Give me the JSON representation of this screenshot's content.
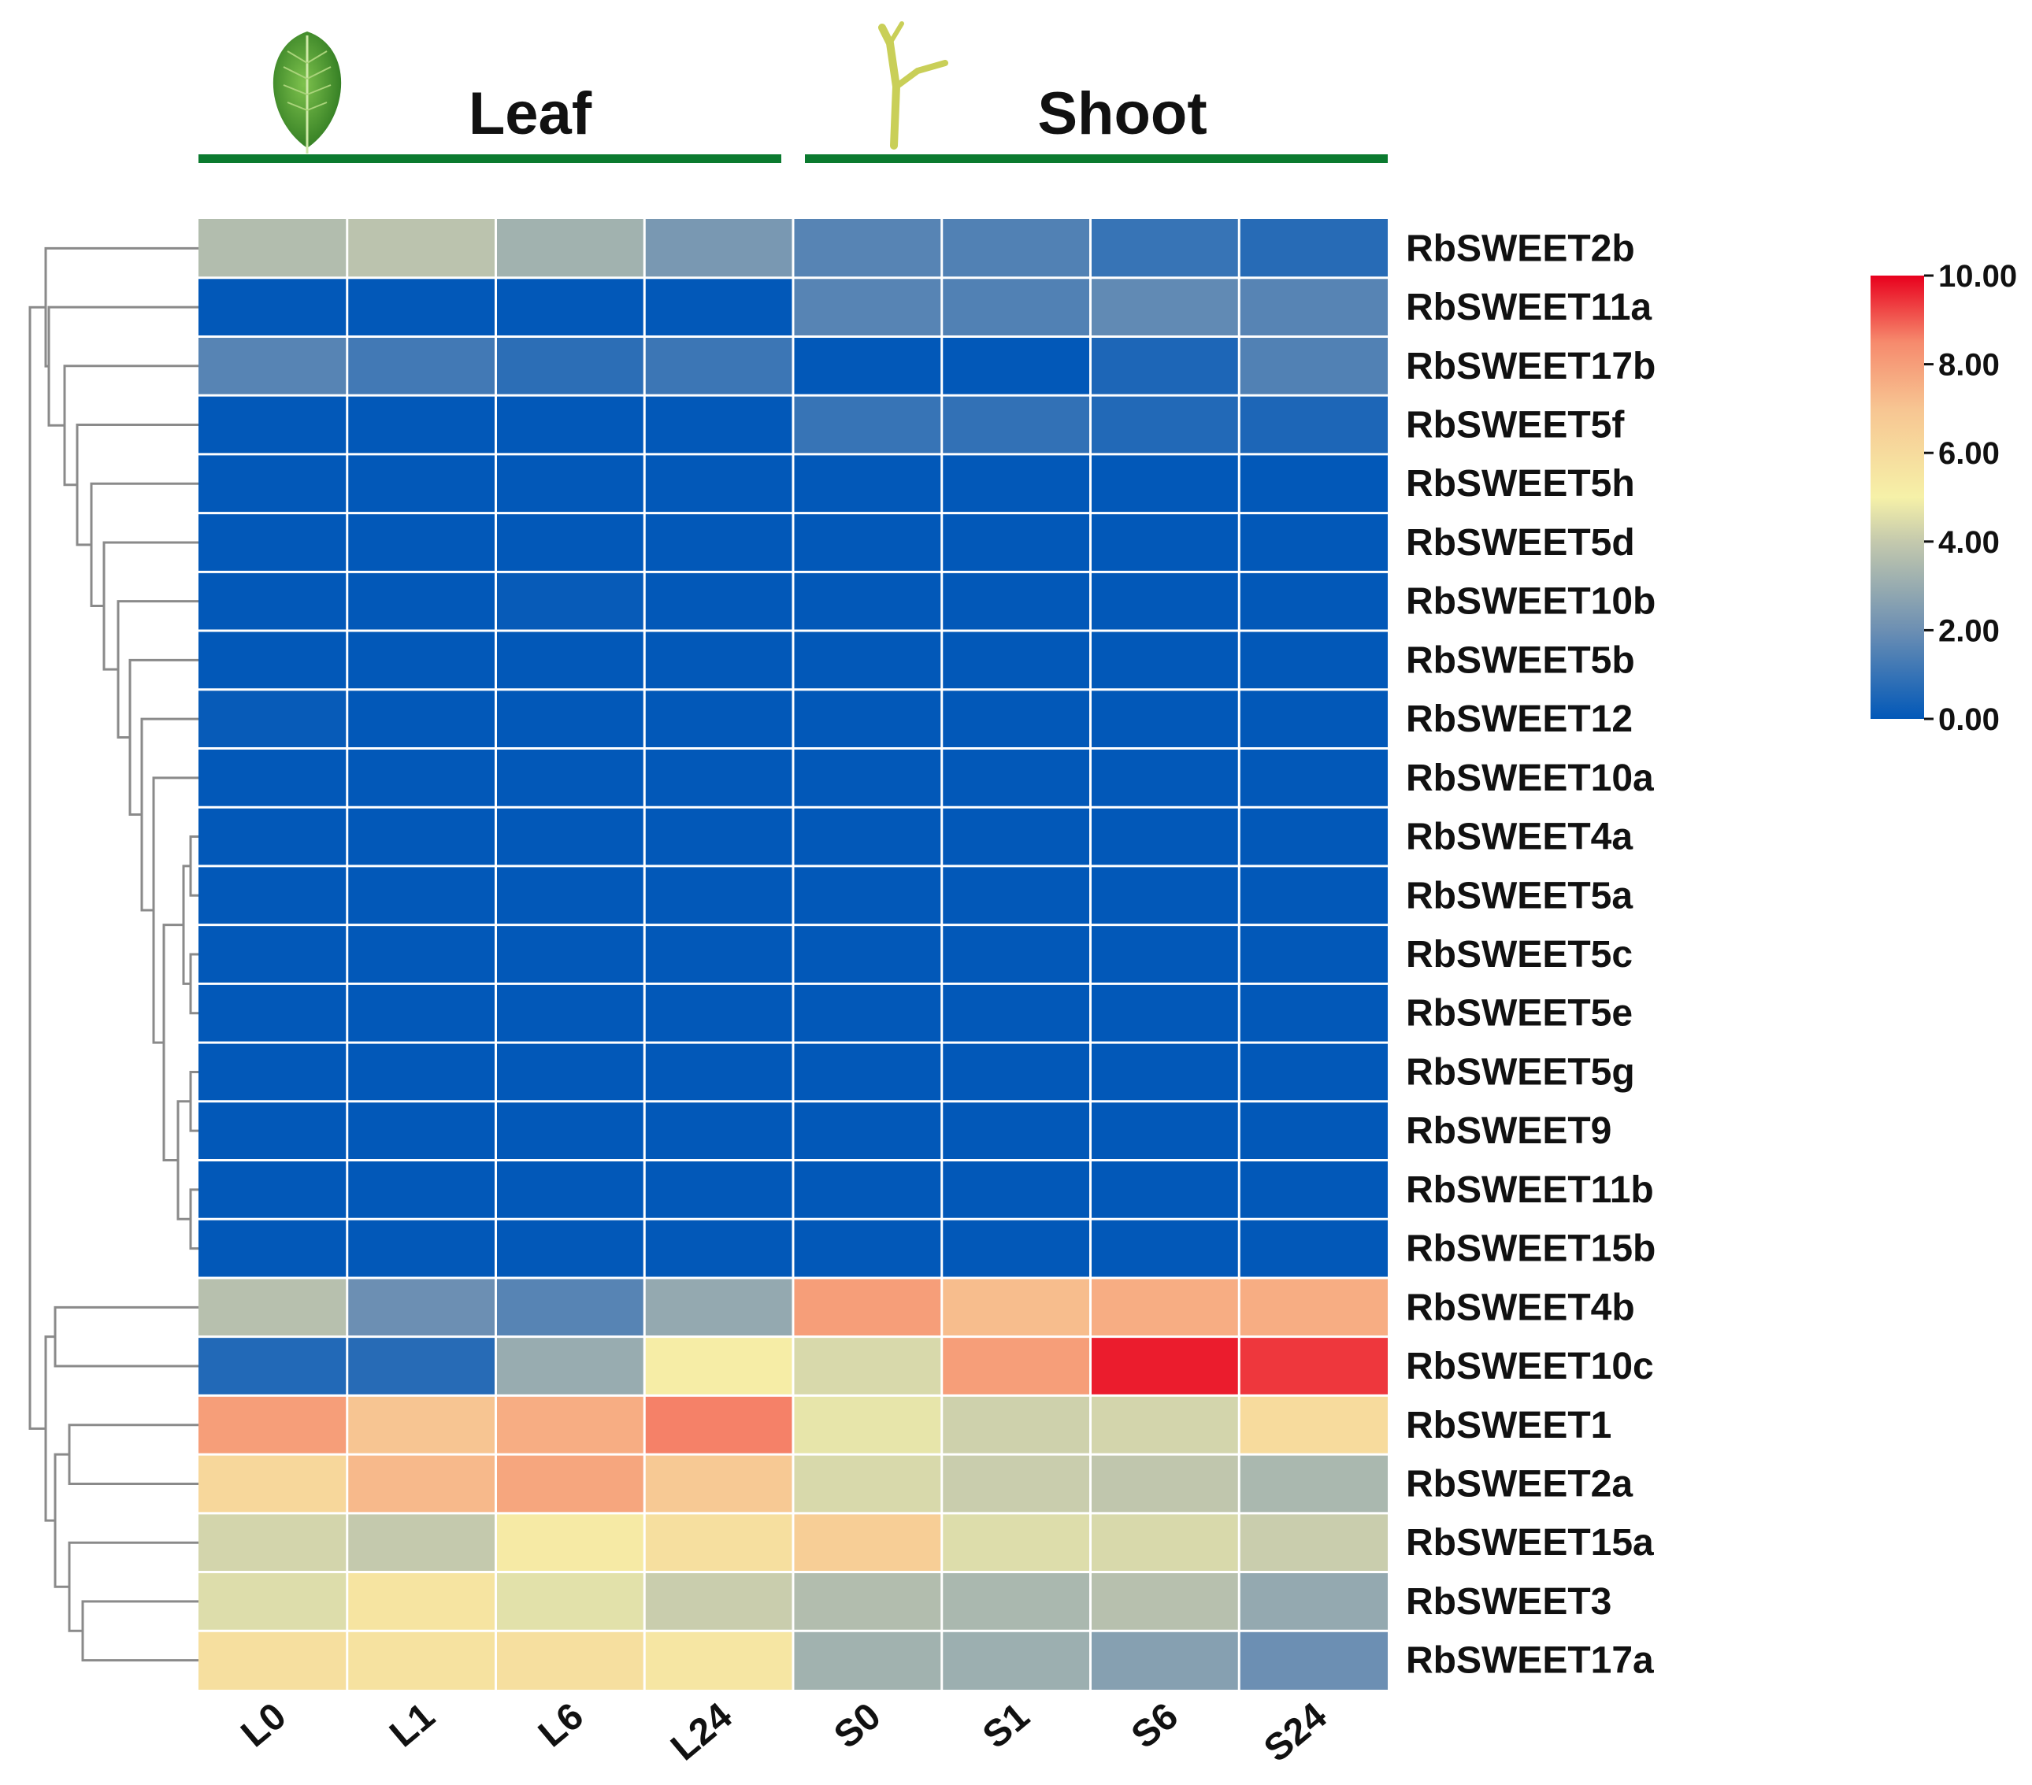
{
  "chart_data": {
    "type": "heatmap",
    "title": "",
    "groups": [
      {
        "name": "Leaf",
        "icon": "leaf-icon",
        "columns": [
          "L0",
          "L1",
          "L6",
          "L24"
        ]
      },
      {
        "name": "Shoot",
        "icon": "shoot-icon",
        "columns": [
          "S0",
          "S1",
          "S6",
          "S24"
        ]
      }
    ],
    "columns": [
      "L0",
      "L1",
      "L6",
      "L24",
      "S0",
      "S1",
      "S6",
      "S24"
    ],
    "rows": [
      "RbSWEET2b",
      "RbSWEET11a",
      "RbSWEET17b",
      "RbSWEET5f",
      "RbSWEET5h",
      "RbSWEET5d",
      "RbSWEET10b",
      "RbSWEET5b",
      "RbSWEET12",
      "RbSWEET10a",
      "RbSWEET4a",
      "RbSWEET5a",
      "RbSWEET5c",
      "RbSWEET5e",
      "RbSWEET5g",
      "RbSWEET9",
      "RbSWEET11b",
      "RbSWEET15b",
      "RbSWEET4b",
      "RbSWEET10c",
      "RbSWEET1",
      "RbSWEET2a",
      "RbSWEET15a",
      "RbSWEET3",
      "RbSWEET17a"
    ],
    "values": [
      [
        3.6,
        3.8,
        3.2,
        2.3,
        1.6,
        1.5,
        1.0,
        0.7
      ],
      [
        0.0,
        0.0,
        0.0,
        0.0,
        1.6,
        1.5,
        1.8,
        1.6
      ],
      [
        1.6,
        1.2,
        0.8,
        1.1,
        0.0,
        0.0,
        0.5,
        1.5
      ],
      [
        0.0,
        0.0,
        0.0,
        0.0,
        1.0,
        0.9,
        0.6,
        0.5
      ],
      [
        0.0,
        0.0,
        0.0,
        0.0,
        0.0,
        0.0,
        0.0,
        0.0
      ],
      [
        0.0,
        0.0,
        0.0,
        0.0,
        0.0,
        0.0,
        0.0,
        0.0
      ],
      [
        0.0,
        0.0,
        0.1,
        0.0,
        0.0,
        0.0,
        0.0,
        0.0
      ],
      [
        0.0,
        0.0,
        0.0,
        0.0,
        0.0,
        0.0,
        0.0,
        0.0
      ],
      [
        0.1,
        0.0,
        0.0,
        0.0,
        0.0,
        0.0,
        0.0,
        0.0
      ],
      [
        0.0,
        0.0,
        0.0,
        0.0,
        0.0,
        0.0,
        0.0,
        0.0
      ],
      [
        0.0,
        0.0,
        0.0,
        0.0,
        0.0,
        0.0,
        0.0,
        0.0
      ],
      [
        0.0,
        0.0,
        0.0,
        0.0,
        0.0,
        0.0,
        0.0,
        0.0
      ],
      [
        0.0,
        0.0,
        0.0,
        0.0,
        0.0,
        0.0,
        0.0,
        0.0
      ],
      [
        0.0,
        0.0,
        0.0,
        0.0,
        0.0,
        0.0,
        0.0,
        0.0
      ],
      [
        0.0,
        0.0,
        0.0,
        0.0,
        0.0,
        0.0,
        0.0,
        0.0
      ],
      [
        0.0,
        0.0,
        0.0,
        0.0,
        0.0,
        0.0,
        0.0,
        0.0
      ],
      [
        0.0,
        0.0,
        0.0,
        0.0,
        0.0,
        0.0,
        0.0,
        0.0
      ],
      [
        0.0,
        0.0,
        0.0,
        0.0,
        0.0,
        0.0,
        0.0,
        0.0
      ],
      [
        3.7,
        2.0,
        1.6,
        2.9,
        8.0,
        7.2,
        7.6,
        7.6
      ],
      [
        0.6,
        0.7,
        3.0,
        5.2,
        4.4,
        8.0,
        9.7,
        9.4
      ],
      [
        8.0,
        7.0,
        7.6,
        8.6,
        4.7,
        4.2,
        4.3,
        6.0
      ],
      [
        6.2,
        7.3,
        7.8,
        6.8,
        4.4,
        4.1,
        3.9,
        3.4
      ],
      [
        4.3,
        4.0,
        5.3,
        5.8,
        6.6,
        4.5,
        4.4,
        4.1
      ],
      [
        4.5,
        5.6,
        4.6,
        4.1,
        3.6,
        3.4,
        3.7,
        2.9
      ],
      [
        5.8,
        5.7,
        5.8,
        5.5,
        3.2,
        3.1,
        2.6,
        2.0
      ]
    ],
    "colorbar": {
      "min": 0.0,
      "max": 10.0,
      "ticks": [
        "0.00",
        "2.00",
        "4.00",
        "6.00",
        "8.00",
        "10.00"
      ],
      "colors": [
        "#0258b8",
        "#c4c9ad",
        "#f6f1a8",
        "#f7c592",
        "#f68a6d",
        "#e8001d"
      ]
    },
    "dendrogram": "row clustering tree on left",
    "legend": "right",
    "accent_color": "#0b7a2f",
    "grid_line_color": "#ffffff"
  }
}
